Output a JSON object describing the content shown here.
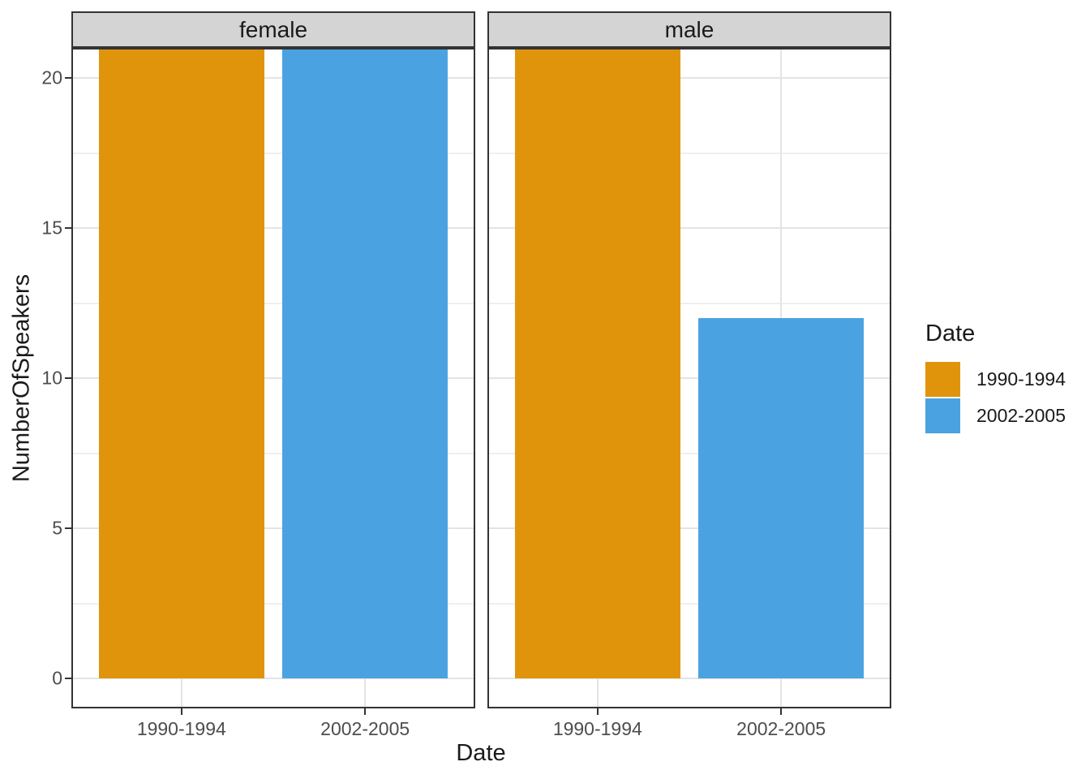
{
  "chart_data": {
    "type": "bar",
    "faceted": true,
    "facets": [
      {
        "label": "female",
        "bars": [
          {
            "category": "1990-1994",
            "value": 21,
            "clipped_at_panel_top": true
          },
          {
            "category": "2002-2005",
            "value": 21,
            "clipped_at_panel_top": true
          }
        ]
      },
      {
        "label": "male",
        "bars": [
          {
            "category": "1990-1994",
            "value": 21,
            "clipped_at_panel_top": true
          },
          {
            "category": "2002-2005",
            "value": 12,
            "clipped_at_panel_top": false
          }
        ]
      }
    ],
    "categories": [
      "1990-1994",
      "2002-2005"
    ],
    "xlabel": "Date",
    "ylabel": "NumberOfSpeakers",
    "y_ticks": [
      0,
      5,
      10,
      15,
      20
    ],
    "y_minor": [
      2.5,
      7.5,
      12.5,
      17.5
    ],
    "y_panel_range": [
      -1,
      21
    ],
    "grid": "major+minor",
    "legend": {
      "title": "Date",
      "position": "right",
      "entries": [
        {
          "label": "1990-1994",
          "color": "#E0940B"
        },
        {
          "label": "2002-2005",
          "color": "#4AA3E0"
        }
      ]
    },
    "style": {
      "background": "#FFFFFF",
      "strip_bg": "#D4D4D4",
      "panel_border": "#333333",
      "grid_major": "#E4E4E4",
      "grid_minor": "#EFEFEF",
      "tick_mark_color": "#333333",
      "axis_text_color": "#4D4D4D",
      "title_text_color": "#1A1A1A"
    }
  }
}
